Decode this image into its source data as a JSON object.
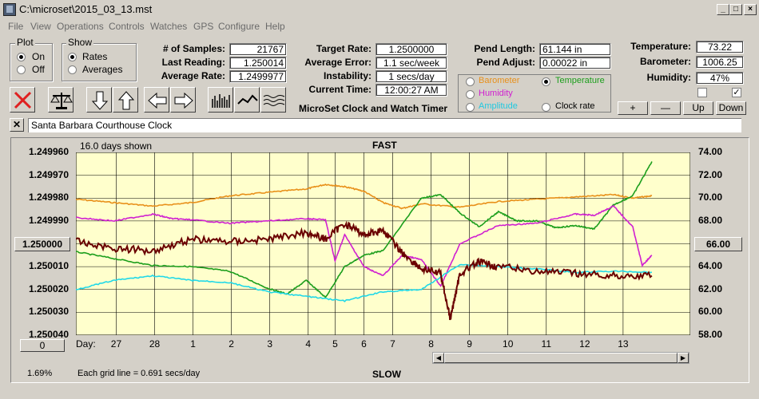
{
  "window": {
    "title": "C:\\microset\\2015_03_13.mst"
  },
  "menu": [
    "File",
    "View",
    "Operations",
    "Controls",
    "Watches",
    "GPS",
    "Configure",
    "Help"
  ],
  "plot_group": {
    "title": "Plot",
    "on": "On",
    "off": "Off",
    "selected": "On"
  },
  "show_group": {
    "title": "Show",
    "rates": "Rates",
    "averages": "Averages",
    "selected": "Rates"
  },
  "stats": {
    "samples_label": "# of Samples:",
    "samples": "21767",
    "last_label": "Last Reading:",
    "last": "1.250014",
    "avg_label": "Average Rate:",
    "avg": "1.2499977"
  },
  "target": {
    "target_label": "Target Rate:",
    "target": "1.2500000",
    "error_label": "Average Error:",
    "error": "1.1 sec/week",
    "instab_label": "Instability:",
    "instab": "1 secs/day",
    "time_label": "Current Time:",
    "time": "12:00:27 AM"
  },
  "app_caption": "MicroSet Clock and Watch Timer",
  "pend": {
    "length_label": "Pend Length:",
    "length": "61.144 in",
    "adjust_label": "Pend Adjust:",
    "adjust": "0.00022 in"
  },
  "sensor_select": {
    "barometer": "Barometer",
    "temperature": "Temperature",
    "humidity": "Humidity",
    "amplitude": "Amplitude",
    "clock_rate": "Clock rate",
    "selected": "Temperature"
  },
  "env": {
    "temp_label": "Temperature:",
    "temp": "73.22",
    "baro_label": "Barometer:",
    "baro": "1006.25",
    "hum_label": "Humidity:",
    "hum": "47%"
  },
  "scale_buttons": {
    "plus": "+",
    "minus": "—",
    "up": "Up",
    "down": "Down"
  },
  "clock_name": "Santa Barbara Courthouse Clock",
  "colors": {
    "barometer": "#e8901a",
    "temperature": "#1c9e1c",
    "humidity": "#d020d0",
    "amplitude": "#20d8e8",
    "rate": "#6a0000",
    "plot_bg": "#ffffcc"
  },
  "chart_data": {
    "type": "line",
    "days_shown": "16.0 days shown",
    "top_label": "FAST",
    "bottom_label": "SLOW",
    "grid_note": "Each grid line = 0.691 secs/day",
    "zoom_pct": "1.69%",
    "left_axis_ticks": [
      "1.249960",
      "1.249970",
      "1.249980",
      "1.249990",
      "1.250000",
      "1.250010",
      "1.250020",
      "1.250030",
      "1.250040"
    ],
    "left_center_button": "1.250000",
    "left_bottom_button": "0",
    "right_axis_ticks": [
      "74.00",
      "72.00",
      "70.00",
      "68.00",
      "66.00",
      "64.00",
      "62.00",
      "60.00",
      "58.00"
    ],
    "right_center_button": "66.00",
    "x_label": "Day:",
    "x_ticks": [
      "27",
      "28",
      "1",
      "2",
      "3",
      "4",
      "5",
      "6",
      "7",
      "8",
      "9",
      "10",
      "11",
      "12",
      "13"
    ],
    "left_ylim": [
      1.24996,
      1.25004
    ],
    "right_ylim": [
      58,
      74
    ],
    "x_range_days": [
      0,
      16
    ],
    "x_tick_positions_days": [
      1.05,
      2.05,
      3.05,
      4.05,
      5.05,
      6.05,
      6.75,
      7.5,
      8.25,
      9.25,
      10.25,
      11.25,
      12.25,
      13.25,
      14.25
    ],
    "series": [
      {
        "name": "Barometer",
        "axis": "right",
        "x": [
          0,
          1,
          2,
          3,
          4,
          5,
          6,
          6.5,
          7,
          7.5,
          8,
          8.5,
          9,
          10,
          11,
          12,
          13,
          14,
          14.5,
          15
        ],
        "values": [
          69.9,
          69.6,
          69.3,
          69.6,
          70.2,
          70.5,
          70.8,
          71.2,
          71.0,
          70.6,
          69.6,
          69.1,
          69.5,
          69.2,
          69.7,
          69.9,
          70.1,
          70.3,
          70.0,
          70.2
        ]
      },
      {
        "name": "Temperature",
        "axis": "right",
        "x": [
          0,
          1,
          2,
          3,
          4,
          5,
          5.5,
          6,
          6.5,
          7,
          7.5,
          8,
          9,
          9.5,
          10,
          10.5,
          11,
          11.5,
          12,
          12.5,
          13,
          13.5,
          14,
          14.5,
          15
        ],
        "values": [
          65.3,
          64.7,
          64.1,
          64.0,
          63.6,
          62.1,
          61.6,
          62.8,
          61.3,
          64.0,
          65.0,
          65.4,
          70.0,
          70.3,
          68.7,
          67.5,
          68.8,
          68.0,
          68.0,
          67.4,
          67.6,
          67.3,
          69.4,
          70.2,
          73.2
        ]
      },
      {
        "name": "Humidity",
        "axis": "right",
        "x": [
          0,
          1,
          2,
          2.5,
          3,
          4,
          5,
          6,
          6.5,
          6.75,
          7,
          7.5,
          8,
          8.5,
          9,
          9.5,
          10,
          11,
          12,
          13,
          13.5,
          14,
          14.5,
          14.75,
          15
        ],
        "values": [
          68.3,
          68.0,
          68.6,
          68.2,
          68.1,
          67.8,
          68.0,
          68.2,
          68.1,
          64.5,
          66.8,
          64.0,
          63.2,
          65.0,
          64.6,
          62.3,
          66.0,
          67.6,
          67.8,
          68.6,
          68.5,
          69.3,
          67.5,
          64.1,
          65.0
        ]
      },
      {
        "name": "Amplitude",
        "axis": "right",
        "x": [
          0,
          1,
          2,
          3,
          4,
          5,
          6,
          7,
          8,
          9,
          10,
          11,
          12,
          13,
          14,
          15
        ],
        "values": [
          62.0,
          62.8,
          63.2,
          62.8,
          62.6,
          61.8,
          61.4,
          61.0,
          61.8,
          62.0,
          64.2,
          64.0,
          63.8,
          63.5,
          63.6,
          63.5
        ]
      },
      {
        "name": "Clock rate",
        "axis": "left",
        "x": [
          0,
          1,
          2,
          3,
          4,
          5,
          6,
          6.5,
          7,
          7.5,
          8,
          8.5,
          9,
          9.5,
          9.75,
          10,
          10.5,
          11,
          12,
          13,
          14,
          15
        ],
        "values": [
          1.249999,
          1.250002,
          1.250003,
          1.249998,
          1.249999,
          1.249998,
          1.249995,
          1.249998,
          1.249991,
          1.249996,
          1.249994,
          1.250004,
          1.250011,
          1.250013,
          1.250033,
          1.250013,
          1.250008,
          1.25001,
          1.250012,
          1.250013,
          1.250014,
          1.250014
        ]
      }
    ]
  }
}
